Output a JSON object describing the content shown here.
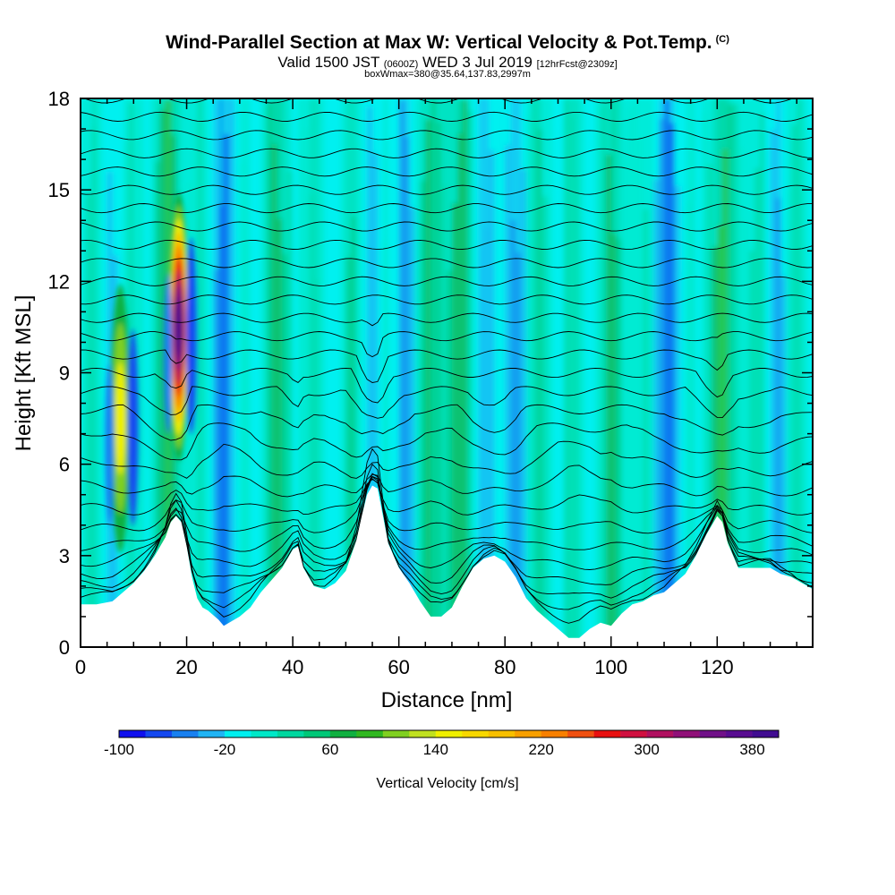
{
  "header": {
    "title": "Wind-Parallel Section at Max W: Vertical Velocity & Pot.Temp.",
    "copyright": "(C)",
    "valid_prefix": "Valid 1500 JST",
    "valid_utc": "(0600Z)",
    "valid_date": "WED 3 Jul 2019",
    "forecast": "[12hrFcst@2309z]",
    "boxwmax": "boxWmax=380@35.64,137.83,2997m"
  },
  "chart_data": {
    "type": "heatmap",
    "xlabel": "Distance [nm]",
    "ylabel": "Height [Kft MSL]",
    "xlim": [
      0,
      138
    ],
    "ylim": [
      0,
      18
    ],
    "x_ticks": [
      0,
      20,
      40,
      60,
      80,
      100,
      120
    ],
    "y_ticks": [
      0,
      3,
      6,
      9,
      12,
      15,
      18
    ],
    "grid": false,
    "colorbar": {
      "label": "Vertical Velocity [cm/s]",
      "tick_values": [
        -100,
        -20,
        60,
        140,
        220,
        300,
        380
      ],
      "tick_labels": [
        "-100",
        "-20",
        "60",
        "140",
        "220",
        "300",
        "380"
      ],
      "range": [
        -100,
        400
      ],
      "step": 20,
      "colors": [
        "#1010ee",
        "#1448f0",
        "#1880f0",
        "#20b4f4",
        "#00f0f0",
        "#00e8c8",
        "#00d8a0",
        "#00c878",
        "#10b040",
        "#30b820",
        "#80d020",
        "#c0e020",
        "#f0f000",
        "#f8d800",
        "#f8c000",
        "#f8a000",
        "#f88000",
        "#f05010",
        "#e81010",
        "#d01040",
        "#b01060",
        "#901078",
        "#701088",
        "#580c90",
        "#400c90"
      ]
    },
    "terrain_profile": {
      "distance_nm": [
        0,
        3,
        6,
        8,
        10,
        12,
        14,
        16,
        17,
        18,
        19,
        20,
        21,
        22,
        23,
        24,
        26,
        27,
        28,
        30,
        32,
        34,
        36,
        38,
        40,
        41,
        42,
        44,
        46,
        48,
        50,
        52,
        53,
        54,
        55,
        56,
        57,
        58,
        60,
        62,
        64,
        66,
        68,
        70,
        72,
        74,
        76,
        78,
        80,
        82,
        84,
        86,
        88,
        90,
        92,
        94,
        96,
        98,
        100,
        101,
        102,
        104,
        106,
        108,
        110,
        112,
        114,
        116,
        118,
        119,
        120,
        121,
        122,
        124,
        126,
        128,
        130,
        132,
        134,
        136,
        138
      ],
      "height_kft": [
        1.4,
        1.4,
        1.5,
        1.8,
        2.1,
        2.5,
        3.0,
        3.6,
        4.1,
        4.3,
        4.1,
        3.3,
        2.3,
        1.6,
        1.3,
        1.2,
        0.9,
        0.7,
        0.8,
        1.0,
        1.3,
        1.8,
        2.2,
        2.6,
        3.2,
        3.3,
        2.6,
        2.0,
        1.9,
        2.1,
        2.5,
        3.5,
        4.3,
        5.0,
        5.3,
        5.2,
        4.3,
        3.4,
        2.6,
        2.1,
        1.5,
        1.0,
        1.0,
        1.3,
        2.0,
        2.6,
        2.9,
        3.0,
        2.8,
        2.3,
        1.6,
        1.2,
        0.9,
        0.6,
        0.3,
        0.3,
        0.6,
        0.8,
        0.7,
        0.9,
        1.1,
        1.4,
        1.5,
        1.7,
        1.8,
        2.1,
        2.4,
        3.0,
        3.7,
        4.0,
        4.3,
        4.1,
        3.4,
        2.6,
        2.6,
        2.6,
        2.6,
        2.4,
        2.3,
        2.1,
        1.9
      ]
    },
    "features": [
      {
        "kind": "updraft",
        "distance_nm": 18.5,
        "height_kft": 10.5,
        "w_cms": 380
      },
      {
        "kind": "updraft",
        "distance_nm": 7.5,
        "height_kft": 7.5,
        "w_cms": 160
      }
    ]
  }
}
